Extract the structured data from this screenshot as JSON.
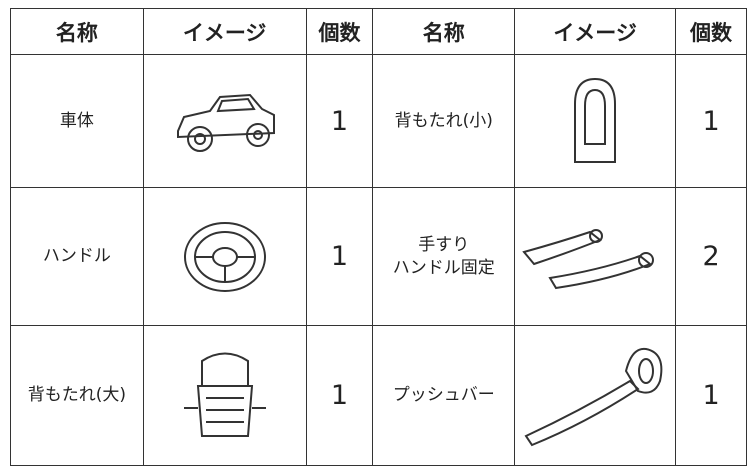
{
  "table": {
    "header": [
      "名称",
      "イメージ",
      "個数",
      "名称",
      "イメージ",
      "個数"
    ],
    "rows": [
      {
        "left": {
          "name": "車体",
          "count": 1
        },
        "right": {
          "name": "背もたれ(小)",
          "count": 1
        }
      },
      {
        "left": {
          "name": "ハンドル",
          "count": 1
        },
        "right": {
          "name": "手すり\nハンドル固定",
          "count": 2
        }
      },
      {
        "left": {
          "name": "背もたれ(大)",
          "count": 1
        },
        "right": {
          "name": "プッシュバー",
          "count": 1
        }
      }
    ]
  }
}
